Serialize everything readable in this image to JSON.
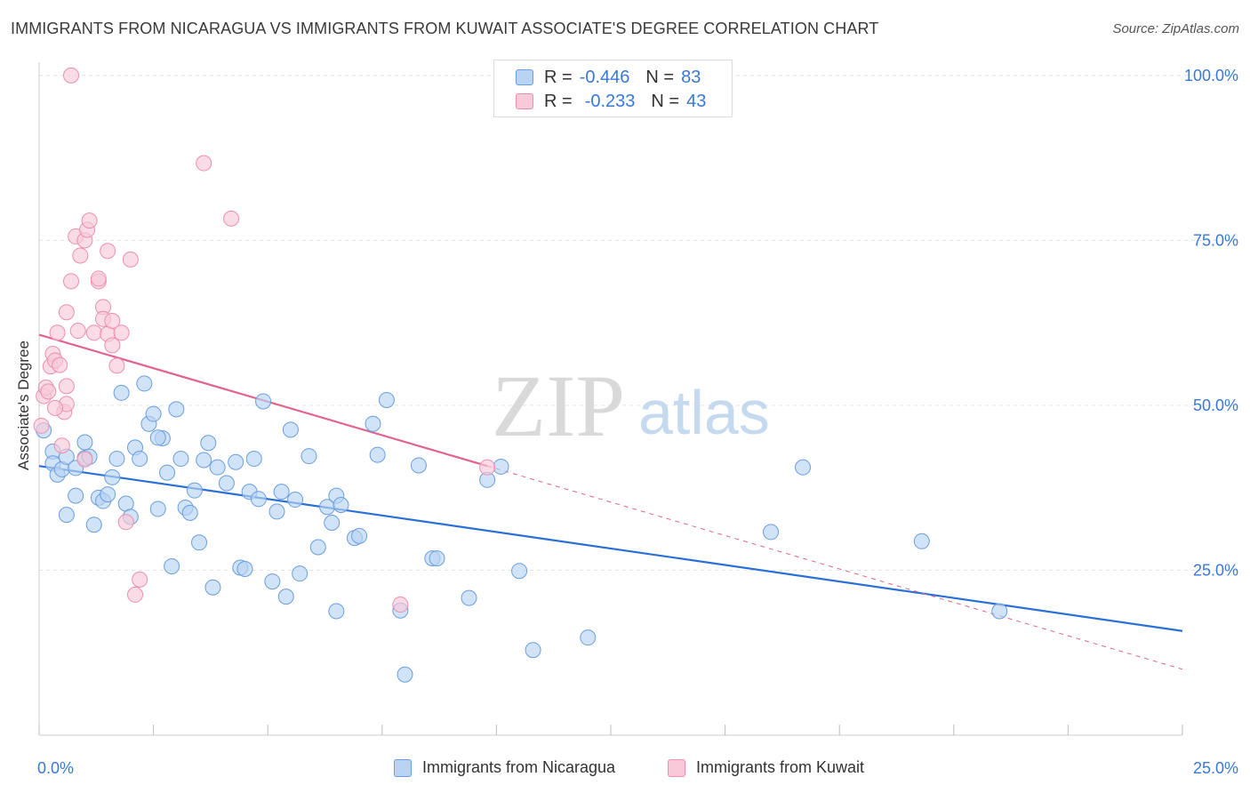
{
  "title": "IMMIGRANTS FROM NICARAGUA VS IMMIGRANTS FROM KUWAIT ASSOCIATE'S DEGREE CORRELATION CHART",
  "source": "Source: ZipAtlas.com",
  "watermark": {
    "zip": "ZIP",
    "atlas": "atlas"
  },
  "legend_top": {
    "rows": [
      {
        "r_label": "R =",
        "r_value": "-0.446",
        "n_label": "N =",
        "n_value": "83"
      },
      {
        "r_label": "R =",
        "r_value": "-0.233",
        "n_label": "N =",
        "n_value": "43"
      }
    ]
  },
  "legend_bottom": [
    "Immigrants from Nicaragua",
    "Immigrants from Kuwait"
  ],
  "colors": {
    "nicaragua_fill": "#b9d4f3",
    "nicaragua_stroke": "#6a9ee0",
    "nicaragua_line": "#2a6fd6",
    "kuwait_fill": "#f8c9d8",
    "kuwait_stroke": "#ec8fae",
    "kuwait_line": "#e0648e",
    "tick_text": "#3a78d6",
    "grid": "#e3e3e3"
  },
  "chart_data": {
    "type": "scatter",
    "xlabel": "",
    "ylabel": "Associate's Degree",
    "xlim": [
      0,
      25
    ],
    "ylim": [
      0,
      102
    ],
    "x_tick_labels": [
      "0.0%",
      "25.0%"
    ],
    "y_ticks": [
      25,
      50,
      75,
      100
    ],
    "y_tick_labels": [
      "25.0%",
      "50.0%",
      "75.0%",
      "100.0%"
    ],
    "grid": true,
    "legend_placement": "top-center",
    "series": [
      {
        "name": "Immigrants from Nicaragua",
        "r": -0.446,
        "n": 83,
        "trend": {
          "x": [
            0,
            25
          ],
          "y": [
            40.8,
            15.8
          ]
        },
        "points": [
          [
            0.1,
            46.2
          ],
          [
            0.3,
            43.0
          ],
          [
            0.3,
            41.2
          ],
          [
            0.4,
            39.5
          ],
          [
            0.5,
            40.3
          ],
          [
            0.6,
            42.2
          ],
          [
            0.6,
            33.4
          ],
          [
            0.8,
            40.5
          ],
          [
            0.8,
            36.3
          ],
          [
            1.0,
            42.0
          ],
          [
            1.0,
            44.4
          ],
          [
            1.1,
            42.2
          ],
          [
            1.2,
            31.9
          ],
          [
            1.3,
            36.0
          ],
          [
            1.4,
            35.5
          ],
          [
            1.5,
            36.5
          ],
          [
            1.6,
            39.1
          ],
          [
            1.7,
            41.9
          ],
          [
            1.8,
            51.9
          ],
          [
            1.9,
            35.1
          ],
          [
            2.0,
            33.1
          ],
          [
            2.1,
            43.6
          ],
          [
            2.2,
            41.9
          ],
          [
            2.3,
            53.3
          ],
          [
            2.4,
            47.2
          ],
          [
            2.5,
            48.7
          ],
          [
            2.6,
            34.3
          ],
          [
            2.7,
            45.0
          ],
          [
            2.8,
            39.8
          ],
          [
            2.9,
            25.6
          ],
          [
            3.0,
            49.4
          ],
          [
            3.1,
            41.9
          ],
          [
            3.2,
            34.5
          ],
          [
            3.3,
            33.7
          ],
          [
            3.4,
            37.1
          ],
          [
            3.5,
            29.2
          ],
          [
            3.6,
            41.7
          ],
          [
            3.7,
            44.3
          ],
          [
            3.8,
            22.4
          ],
          [
            3.9,
            40.6
          ],
          [
            4.1,
            38.2
          ],
          [
            4.3,
            41.4
          ],
          [
            4.4,
            25.4
          ],
          [
            4.5,
            25.2
          ],
          [
            4.6,
            36.9
          ],
          [
            4.7,
            41.9
          ],
          [
            4.8,
            35.8
          ],
          [
            4.9,
            50.6
          ],
          [
            5.1,
            23.3
          ],
          [
            5.2,
            33.9
          ],
          [
            5.3,
            36.9
          ],
          [
            5.4,
            21.0
          ],
          [
            5.5,
            46.3
          ],
          [
            5.6,
            35.7
          ],
          [
            5.7,
            24.5
          ],
          [
            5.9,
            42.3
          ],
          [
            6.1,
            28.5
          ],
          [
            6.3,
            34.6
          ],
          [
            6.4,
            32.2
          ],
          [
            6.5,
            36.3
          ],
          [
            6.5,
            18.8
          ],
          [
            6.6,
            34.9
          ],
          [
            6.9,
            29.9
          ],
          [
            7.0,
            30.2
          ],
          [
            7.3,
            47.2
          ],
          [
            7.4,
            42.5
          ],
          [
            7.6,
            50.8
          ],
          [
            7.9,
            18.9
          ],
          [
            8.0,
            9.2
          ],
          [
            8.3,
            40.9
          ],
          [
            8.6,
            26.8
          ],
          [
            8.7,
            26.8
          ],
          [
            9.4,
            20.8
          ],
          [
            9.8,
            38.7
          ],
          [
            10.1,
            40.7
          ],
          [
            10.5,
            24.9
          ],
          [
            10.8,
            12.9
          ],
          [
            12.0,
            14.8
          ],
          [
            16.0,
            30.8
          ],
          [
            16.7,
            40.6
          ],
          [
            19.3,
            29.4
          ],
          [
            21.0,
            18.8
          ],
          [
            2.6,
            45.1
          ]
        ]
      },
      {
        "name": "Immigrants from Kuwait",
        "r": -0.233,
        "n": 43,
        "trend": {
          "x": [
            0,
            9.8
          ],
          "y": [
            60.7,
            40.8
          ]
        },
        "trend_dashed": {
          "x": [
            9.8,
            25
          ],
          "y": [
            40.8,
            10.0
          ]
        },
        "points": [
          [
            0.05,
            46.9
          ],
          [
            0.1,
            51.4
          ],
          [
            0.15,
            52.7
          ],
          [
            0.2,
            52.1
          ],
          [
            0.25,
            55.9
          ],
          [
            0.3,
            57.8
          ],
          [
            0.35,
            56.8
          ],
          [
            0.4,
            61.0
          ],
          [
            0.45,
            56.1
          ],
          [
            0.5,
            43.9
          ],
          [
            0.55,
            49.0
          ],
          [
            0.6,
            50.2
          ],
          [
            0.6,
            52.9
          ],
          [
            0.6,
            64.1
          ],
          [
            0.7,
            68.8
          ],
          [
            0.8,
            75.6
          ],
          [
            0.85,
            61.3
          ],
          [
            0.9,
            72.7
          ],
          [
            1.0,
            41.8
          ],
          [
            1.0,
            75.0
          ],
          [
            1.05,
            76.6
          ],
          [
            1.1,
            78.0
          ],
          [
            1.2,
            61.0
          ],
          [
            1.3,
            68.8
          ],
          [
            1.3,
            69.2
          ],
          [
            1.4,
            64.9
          ],
          [
            1.4,
            63.1
          ],
          [
            1.5,
            60.8
          ],
          [
            1.5,
            73.4
          ],
          [
            1.6,
            59.1
          ],
          [
            1.6,
            62.8
          ],
          [
            1.7,
            56.0
          ],
          [
            1.8,
            61.0
          ],
          [
            1.9,
            32.3
          ],
          [
            2.0,
            72.1
          ],
          [
            2.1,
            21.3
          ],
          [
            2.2,
            23.6
          ],
          [
            3.6,
            86.7
          ],
          [
            4.2,
            78.3
          ],
          [
            7.9,
            19.8
          ],
          [
            9.8,
            40.6
          ],
          [
            0.7,
            100.0
          ],
          [
            0.35,
            49.6
          ]
        ]
      }
    ]
  }
}
